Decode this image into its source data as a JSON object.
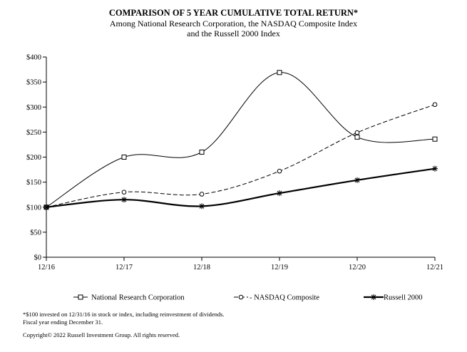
{
  "header": {
    "title": "COMPARISON OF 5 YEAR CUMULATIVE TOTAL RETURN*",
    "subtitle_line1": "Among National Research Corporation, the NASDAQ Composite Index",
    "subtitle_line2": "and the Russell 2000 Index"
  },
  "footer": {
    "note1": "*$100 invested on 12/31/16 in stock or index, including reinvestment of dividends.",
    "note2": "Fiscal year ending December 31.",
    "copyright": "Copyright© 2022 Russell Investment Group. All rights reserved."
  },
  "chart_data": {
    "type": "line",
    "x": [
      "12/16",
      "12/17",
      "12/18",
      "12/19",
      "12/20",
      "12/21"
    ],
    "ylim": [
      0,
      400
    ],
    "yticks": [
      "$0",
      "$50",
      "$100",
      "$150",
      "$200",
      "$250",
      "$300",
      "$350",
      "$400"
    ],
    "ytick_values": [
      0,
      50,
      100,
      150,
      200,
      250,
      300,
      350,
      400
    ],
    "grid": false,
    "legend_position": "bottom",
    "series": [
      {
        "name": "National Research Corporation",
        "values": [
          100,
          200,
          210,
          369,
          240,
          236
        ],
        "marker": "square",
        "style": "solid",
        "color": "#000000"
      },
      {
        "name": "NASDAQ Composite",
        "values": [
          100,
          130,
          126,
          172,
          249,
          305
        ],
        "marker": "circle",
        "style": "dashed",
        "color": "#000000"
      },
      {
        "name": "Russell 2000",
        "values": [
          100,
          115,
          102,
          128,
          154,
          177
        ],
        "marker": "asterisk",
        "style": "bold",
        "color": "#000000"
      }
    ],
    "legend_labels": [
      "National Research Corporation",
      "- NASDAQ Composite",
      "Russell 2000"
    ]
  }
}
